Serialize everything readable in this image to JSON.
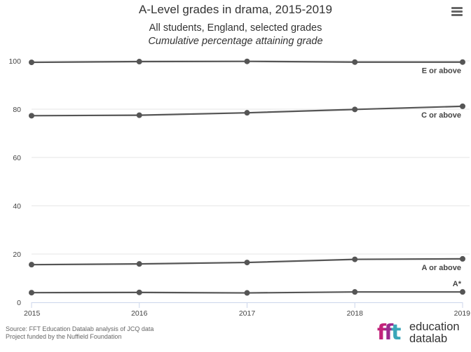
{
  "title": "A-Level grades in drama, 2015-2019",
  "subtitle_line1": "All students, England, selected grades",
  "subtitle_line2": "Cumulative percentage attaining grade",
  "menu_icon": "hamburger-menu-icon",
  "source_line1": "Source: FFT Education Datalab analysis of JCQ data",
  "source_line2": "Project funded by the Nuffield Foundation",
  "logo": {
    "line1": "education",
    "line2": "datalab"
  },
  "colors": {
    "line": "#555555",
    "grid": "#e6e6e6",
    "axis": "#ccd6eb"
  },
  "chart_data": {
    "type": "line",
    "title": "A-Level grades in drama, 2015-2019",
    "xlabel": "",
    "ylabel": "",
    "x": [
      "2015",
      "2016",
      "2017",
      "2018",
      "2019"
    ],
    "ylim": [
      0,
      100
    ],
    "yticks": [
      0,
      20,
      40,
      60,
      80,
      100
    ],
    "grid": true,
    "legend": "none",
    "series": [
      {
        "name": "E or above",
        "values": [
          99.4,
          99.7,
          99.8,
          99.5,
          99.5
        ]
      },
      {
        "name": "C or above",
        "values": [
          77.3,
          77.5,
          78.5,
          79.9,
          81.2
        ]
      },
      {
        "name": "A or above",
        "values": [
          15.6,
          15.9,
          16.5,
          17.8,
          18.0
        ]
      },
      {
        "name": "A*",
        "values": [
          4.0,
          4.1,
          3.9,
          4.3,
          4.3
        ]
      }
    ]
  }
}
